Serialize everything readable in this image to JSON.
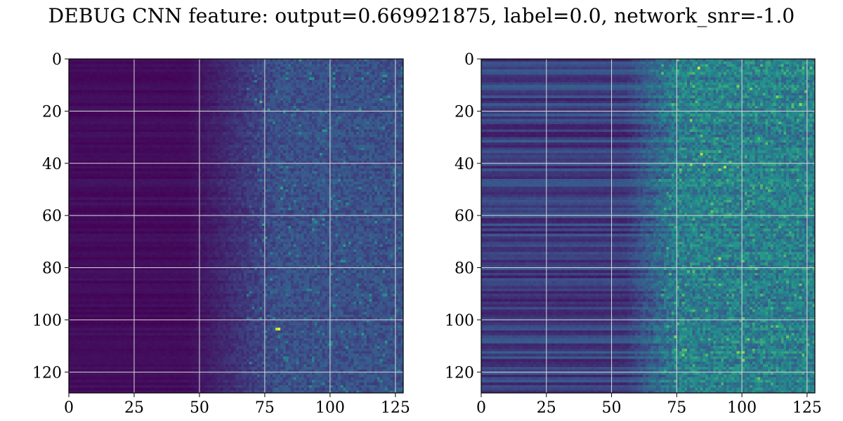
{
  "title": "DEBUG CNN feature: output=0.669921875, label=0.0, network_snr=-1.0",
  "colormap": [
    "#440154",
    "#3b528b",
    "#21918c",
    "#5ec962",
    "#fde725"
  ],
  "grid_color": "#d9d9d9",
  "chart_data": [
    {
      "type": "heatmap",
      "rows": 128,
      "cols": 128,
      "xlim": [
        0,
        128
      ],
      "ylim": [
        0,
        128
      ],
      "y_inverted": true,
      "x_ticks": [
        0,
        25,
        50,
        75,
        100,
        125
      ],
      "y_ticks": [
        0,
        20,
        40,
        60,
        80,
        100,
        120
      ],
      "x_tick_labels": [
        "0",
        "25",
        "50",
        "75",
        "100",
        "125"
      ],
      "y_tick_labels": [
        "0",
        "20",
        "40",
        "60",
        "80",
        "100",
        "120"
      ],
      "grid": true,
      "value_range": [
        0,
        1
      ],
      "intensity_profile": {
        "low_cols": [
          0,
          45
        ],
        "rise_cols": [
          45,
          80
        ],
        "high_cols": [
          80,
          128
        ],
        "low_level": 0.03,
        "high_level": 0.22,
        "noise": 0.12
      },
      "hotspots": [
        {
          "row": 103,
          "col": 80,
          "value": 1.0
        },
        {
          "row": 103,
          "col": 79,
          "value": 0.9
        },
        {
          "row": 16,
          "col": 73,
          "value": 0.7
        },
        {
          "row": 63,
          "col": 74,
          "value": 0.55
        },
        {
          "row": 68,
          "col": 75,
          "value": 0.55
        },
        {
          "row": 99,
          "col": 73,
          "value": 0.5
        },
        {
          "row": 86,
          "col": 75,
          "value": 0.45
        }
      ]
    },
    {
      "type": "heatmap",
      "rows": 128,
      "cols": 128,
      "xlim": [
        0,
        128
      ],
      "ylim": [
        0,
        128
      ],
      "y_inverted": true,
      "x_ticks": [
        0,
        25,
        50,
        75,
        100,
        125
      ],
      "y_ticks": [
        0,
        20,
        40,
        60,
        80,
        100,
        120
      ],
      "x_tick_labels": [
        "0",
        "25",
        "50",
        "75",
        "100",
        "125"
      ],
      "y_tick_labels": [
        "0",
        "20",
        "40",
        "60",
        "80",
        "100",
        "120"
      ],
      "grid": true,
      "value_range": [
        0,
        1
      ],
      "intensity_profile": {
        "low_cols": [
          0,
          55
        ],
        "rise_cols": [
          55,
          75
        ],
        "high_cols": [
          75,
          128
        ],
        "low_level": 0.18,
        "high_level": 0.38,
        "noise": 0.22
      },
      "hotspots": [
        {
          "row": 3,
          "col": 83,
          "value": 0.95
        },
        {
          "row": 36,
          "col": 84,
          "value": 0.9
        },
        {
          "row": 40,
          "col": 80,
          "value": 0.85
        },
        {
          "row": 40,
          "col": 85,
          "value": 0.85
        },
        {
          "row": 41,
          "col": 93,
          "value": 0.9
        },
        {
          "row": 76,
          "col": 91,
          "value": 0.85
        },
        {
          "row": 115,
          "col": 100,
          "value": 0.8
        },
        {
          "row": 96,
          "col": 80,
          "value": 0.6
        },
        {
          "row": 15,
          "col": 83,
          "value": 0.55
        }
      ]
    }
  ]
}
